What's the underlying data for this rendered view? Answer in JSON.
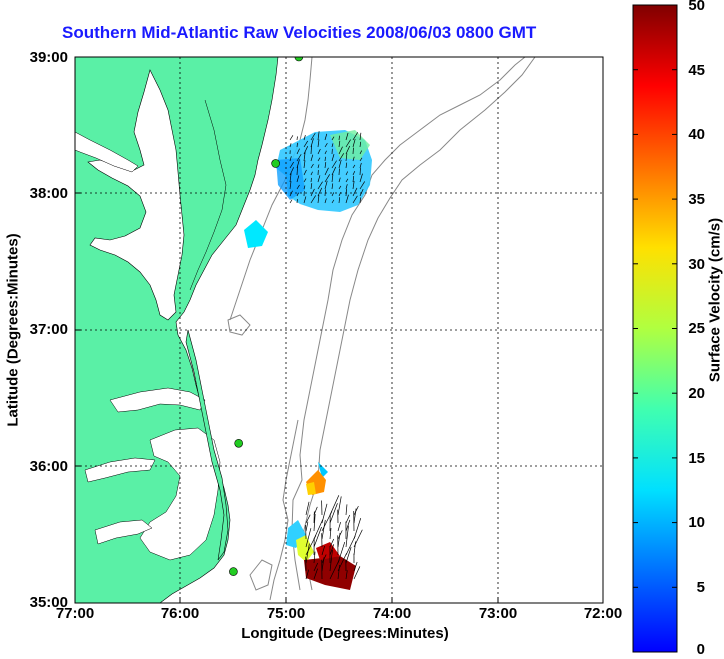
{
  "title": "Southern Mid-Atlantic Raw Velocities 2008/06/03 0800 GMT",
  "axes": {
    "xlabel": "Longitude (Degrees:Minutes)",
    "ylabel": "Latitude (Degrees:Minutes)",
    "x_ticks": [
      "77:00",
      "76:00",
      "75:00",
      "74:00",
      "73:00",
      "72:00"
    ],
    "y_ticks": [
      "39:00",
      "38:00",
      "37:00",
      "36:00",
      "35:00"
    ]
  },
  "colorbar": {
    "label": "Surface Velocity (cm/s)",
    "ticks": [
      "50",
      "45",
      "40",
      "35",
      "30",
      "25",
      "20",
      "15",
      "10",
      "5",
      "0"
    ],
    "range": [
      0,
      50
    ]
  },
  "colors": {
    "land": "#5af0a6",
    "coast": "#000000",
    "bathymetry": "#888888",
    "title": "#1a1aff",
    "station": "#22cc22"
  },
  "stations_deg": [
    {
      "lon": -74.88,
      "lat": 39.0
    },
    {
      "lon": -75.1,
      "lat": 38.22
    },
    {
      "lon": -75.45,
      "lat": 36.17
    },
    {
      "lon": -75.5,
      "lat": 35.23
    }
  ]
}
